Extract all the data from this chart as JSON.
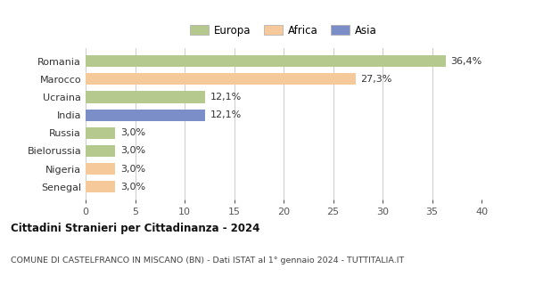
{
  "categories": [
    "Romania",
    "Marocco",
    "Ucraina",
    "India",
    "Russia",
    "Bielorussia",
    "Nigeria",
    "Senegal"
  ],
  "values": [
    36.4,
    27.3,
    12.1,
    12.1,
    3.0,
    3.0,
    3.0,
    3.0
  ],
  "labels": [
    "36,4%",
    "27,3%",
    "12,1%",
    "12,1%",
    "3,0%",
    "3,0%",
    "3,0%",
    "3,0%"
  ],
  "colors": [
    "#b5c98e",
    "#f5c99a",
    "#b5c98e",
    "#7b8ec8",
    "#b5c98e",
    "#b5c98e",
    "#f5c99a",
    "#f5c99a"
  ],
  "legend_labels": [
    "Europa",
    "Africa",
    "Asia"
  ],
  "legend_colors": [
    "#b5c98e",
    "#f5c99a",
    "#7b8ec8"
  ],
  "xlim": [
    0,
    40
  ],
  "xticks": [
    0,
    5,
    10,
    15,
    20,
    25,
    30,
    35,
    40
  ],
  "title": "Cittadini Stranieri per Cittadinanza - 2024",
  "subtitle": "COMUNE DI CASTELFRANCO IN MISCANO (BN) - Dati ISTAT al 1° gennaio 2024 - TUTTITALIA.IT",
  "bg_color": "#ffffff",
  "grid_color": "#cccccc",
  "bar_height": 0.65,
  "label_fontsize": 8,
  "ytick_fontsize": 8,
  "xtick_fontsize": 8
}
